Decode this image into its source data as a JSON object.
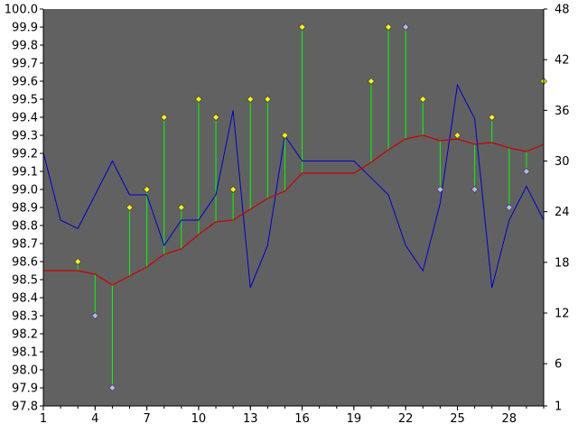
{
  "chart_data": {
    "type": "line",
    "title": "",
    "x_ticks": [
      "1",
      "4",
      "7",
      "10",
      "13",
      "16",
      "19",
      "22",
      "25",
      "28"
    ],
    "x_range": [
      1,
      30
    ],
    "y_left": {
      "range": [
        97.8,
        100.0
      ],
      "ticks": [
        "97.8",
        "97.9",
        "98.0",
        "98.1",
        "98.2",
        "98.3",
        "98.4",
        "98.5",
        "98.6",
        "98.7",
        "98.8",
        "98.9",
        "99.0",
        "99.1",
        "99.2",
        "99.3",
        "99.4",
        "99.5",
        "99.6",
        "99.7",
        "99.8",
        "99.9",
        "100.0"
      ]
    },
    "y_right": {
      "range": [
        1,
        48
      ],
      "ticks": [
        "1",
        "6",
        "12",
        "18",
        "24",
        "30",
        "36",
        "42",
        "48"
      ]
    },
    "grid": false,
    "legend": "none",
    "series": [
      {
        "type": "points",
        "axis": "left",
        "x": [
          3,
          4,
          5,
          6,
          7,
          8,
          9,
          10,
          11,
          12,
          13,
          14,
          15,
          16,
          20,
          21,
          22,
          23,
          24,
          25,
          26,
          27,
          28,
          29,
          30
        ],
        "values": [
          98.6,
          98.3,
          97.9,
          98.9,
          99.0,
          99.4,
          98.9,
          99.5,
          99.4,
          99.0,
          99.5,
          99.5,
          99.3,
          99.9,
          99.6,
          99.9,
          99.9,
          99.5,
          99.0,
          99.3,
          99.0,
          99.4,
          98.9,
          99.1,
          99.6
        ]
      },
      {
        "type": "line",
        "axis": "left",
        "x": [
          1,
          2,
          3,
          4,
          5,
          6,
          7,
          8,
          9,
          10,
          11,
          12,
          13,
          14,
          15,
          16,
          17,
          18,
          19,
          20,
          21,
          22,
          23,
          24,
          25,
          26,
          27,
          28,
          29,
          30
        ],
        "values": [
          98.55,
          98.55,
          98.55,
          98.53,
          98.47,
          98.52,
          98.57,
          98.64,
          98.67,
          98.75,
          98.82,
          98.83,
          98.89,
          98.95,
          98.99,
          99.09,
          99.09,
          99.09,
          99.09,
          99.15,
          99.22,
          99.28,
          99.3,
          99.27,
          99.28,
          99.25,
          99.26,
          99.23,
          99.21,
          99.25
        ]
      },
      {
        "type": "line",
        "axis": "right",
        "x": [
          1,
          2,
          3,
          4,
          5,
          6,
          7,
          8,
          9,
          10,
          11,
          12,
          13,
          14,
          15,
          16,
          17,
          18,
          19,
          20,
          21,
          22,
          23,
          24,
          25,
          26,
          27,
          28,
          29,
          30
        ],
        "values": [
          31,
          23,
          22,
          26,
          30,
          26,
          26,
          20,
          23,
          23,
          26,
          36,
          15,
          20,
          33,
          30,
          30,
          30,
          30,
          28,
          26,
          20,
          17,
          25,
          39,
          35,
          15,
          23,
          27,
          23
        ]
      }
    ],
    "colors": {
      "plot_bg": "#616161",
      "page_bg": "#ffffff",
      "axis": "#000000",
      "series1_fill": "#ffff00",
      "series1_low_fill": "#b6b6ff",
      "series1_outline": "#4a4a4a",
      "stem": "#00ff00",
      "series2_line": "#cc0000",
      "series3_line": "#0000cc"
    }
  }
}
